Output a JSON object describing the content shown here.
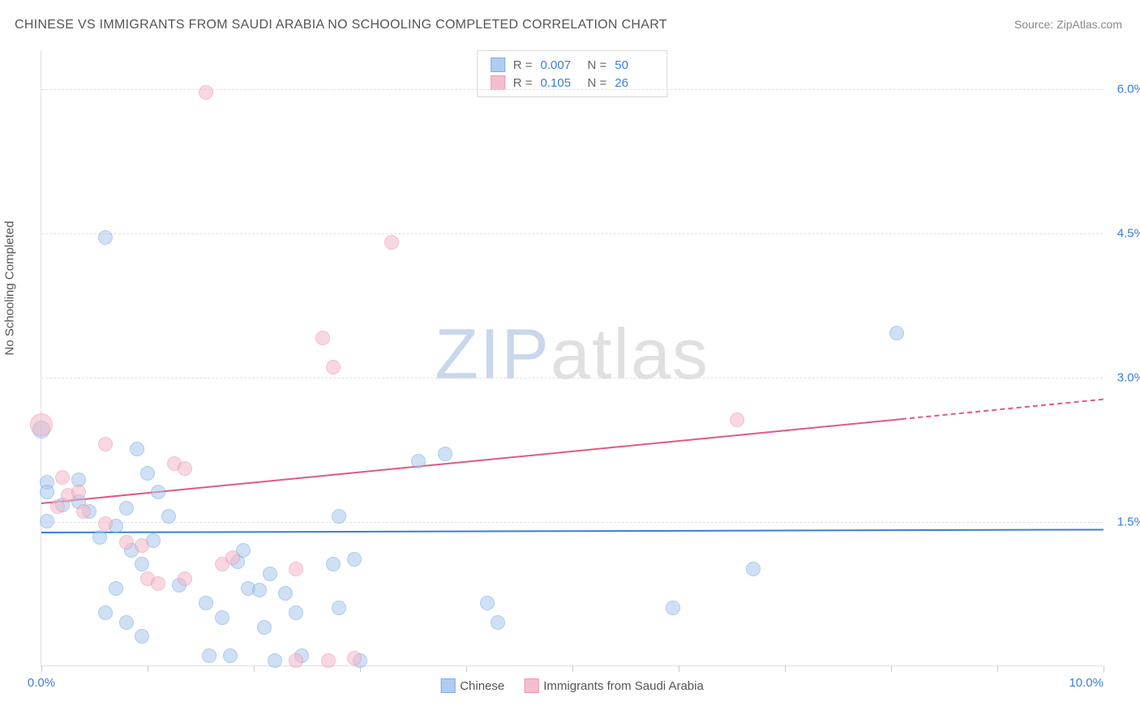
{
  "title": "CHINESE VS IMMIGRANTS FROM SAUDI ARABIA NO SCHOOLING COMPLETED CORRELATION CHART",
  "source": "Source: ZipAtlas.com",
  "ylabel": "No Schooling Completed",
  "watermark_a": "ZIP",
  "watermark_b": "atlas",
  "chart": {
    "type": "scatter",
    "xlim": [
      0,
      10
    ],
    "ylim": [
      0,
      6.4
    ],
    "xticks": [
      0,
      1,
      2,
      3,
      4,
      5,
      6,
      7,
      8,
      9,
      10
    ],
    "xtick_labels_shown": {
      "0": "0.0%",
      "10": "10.0%"
    },
    "yticks": [
      1.5,
      3.0,
      4.5,
      6.0
    ],
    "ytick_labels": [
      "1.5%",
      "3.0%",
      "4.5%",
      "6.0%"
    ],
    "background_color": "#ffffff",
    "grid_color": "#e0e0e0",
    "grid_dash": true,
    "axis_label_color": "#3b7dd8",
    "title_color": "#555555",
    "title_fontsize": 16,
    "ylabel_fontsize": 15,
    "tick_fontsize": 15
  },
  "series": [
    {
      "name": "Chinese",
      "fill_color": "#a8c8ee",
      "fill_opacity": 0.55,
      "stroke_color": "#6fa3e0",
      "line_color": "#3b7dd8",
      "marker_radius": 9,
      "r_label": "R =",
      "r_value": "0.007",
      "n_label": "N =",
      "n_value": "50",
      "regression": {
        "y_at_x0": 1.4,
        "y_at_x10": 1.43
      },
      "points": [
        {
          "x": 0.6,
          "y": 4.45,
          "r": 9
        },
        {
          "x": 8.05,
          "y": 3.45,
          "r": 9
        },
        {
          "x": 0.0,
          "y": 2.45,
          "r": 11
        },
        {
          "x": 0.05,
          "y": 1.9,
          "r": 9
        },
        {
          "x": 0.05,
          "y": 1.8,
          "r": 9
        },
        {
          "x": 0.05,
          "y": 1.5,
          "r": 9
        },
        {
          "x": 0.35,
          "y": 1.7,
          "r": 9
        },
        {
          "x": 0.35,
          "y": 1.93,
          "r": 9
        },
        {
          "x": 0.8,
          "y": 1.63,
          "r": 9
        },
        {
          "x": 0.9,
          "y": 2.25,
          "r": 9
        },
        {
          "x": 1.0,
          "y": 2.0,
          "r": 9
        },
        {
          "x": 1.2,
          "y": 1.55,
          "r": 9
        },
        {
          "x": 1.05,
          "y": 1.3,
          "r": 9
        },
        {
          "x": 0.7,
          "y": 1.45,
          "r": 9
        },
        {
          "x": 0.55,
          "y": 1.33,
          "r": 9
        },
        {
          "x": 0.85,
          "y": 1.2,
          "r": 9
        },
        {
          "x": 0.95,
          "y": 1.05,
          "r": 9
        },
        {
          "x": 0.7,
          "y": 0.8,
          "r": 9
        },
        {
          "x": 0.6,
          "y": 0.55,
          "r": 9
        },
        {
          "x": 0.8,
          "y": 0.45,
          "r": 9
        },
        {
          "x": 0.95,
          "y": 0.3,
          "r": 9
        },
        {
          "x": 1.3,
          "y": 0.83,
          "r": 9
        },
        {
          "x": 1.55,
          "y": 0.65,
          "r": 9
        },
        {
          "x": 1.58,
          "y": 0.1,
          "r": 9
        },
        {
          "x": 1.7,
          "y": 0.5,
          "r": 9
        },
        {
          "x": 1.85,
          "y": 1.08,
          "r": 9
        },
        {
          "x": 1.78,
          "y": 0.1,
          "r": 9
        },
        {
          "x": 1.95,
          "y": 0.8,
          "r": 9
        },
        {
          "x": 1.9,
          "y": 1.2,
          "r": 9
        },
        {
          "x": 2.05,
          "y": 0.78,
          "r": 9
        },
        {
          "x": 2.1,
          "y": 0.4,
          "r": 9
        },
        {
          "x": 2.15,
          "y": 0.95,
          "r": 9
        },
        {
          "x": 2.3,
          "y": 0.75,
          "r": 9
        },
        {
          "x": 2.2,
          "y": 0.05,
          "r": 9
        },
        {
          "x": 2.4,
          "y": 0.55,
          "r": 9
        },
        {
          "x": 2.45,
          "y": 0.1,
          "r": 9
        },
        {
          "x": 2.75,
          "y": 1.05,
          "r": 9
        },
        {
          "x": 2.8,
          "y": 0.6,
          "r": 9
        },
        {
          "x": 2.8,
          "y": 1.55,
          "r": 9
        },
        {
          "x": 2.95,
          "y": 1.1,
          "r": 9
        },
        {
          "x": 3.0,
          "y": 0.05,
          "r": 9
        },
        {
          "x": 3.55,
          "y": 2.12,
          "r": 9
        },
        {
          "x": 3.8,
          "y": 2.2,
          "r": 9
        },
        {
          "x": 4.2,
          "y": 0.65,
          "r": 9
        },
        {
          "x": 4.3,
          "y": 0.45,
          "r": 9
        },
        {
          "x": 5.95,
          "y": 0.6,
          "r": 9
        },
        {
          "x": 6.7,
          "y": 1.0,
          "r": 9
        },
        {
          "x": 0.45,
          "y": 1.6,
          "r": 9
        },
        {
          "x": 1.1,
          "y": 1.8,
          "r": 9
        },
        {
          "x": 0.2,
          "y": 1.67,
          "r": 9
        }
      ]
    },
    {
      "name": "Immigrants from Saudi Arabia",
      "fill_color": "#f4b8c8",
      "fill_opacity": 0.55,
      "stroke_color": "#e88fa8",
      "line_color": "#e05a7f",
      "marker_radius": 9,
      "r_label": "R =",
      "r_value": "0.105",
      "n_label": "N =",
      "n_value": "26",
      "regression": {
        "y_at_x0": 1.7,
        "y_at_x10": 2.78,
        "dash_from_x": 8.1
      },
      "points": [
        {
          "x": 1.55,
          "y": 5.95,
          "r": 9
        },
        {
          "x": 3.3,
          "y": 4.4,
          "r": 9
        },
        {
          "x": 2.65,
          "y": 3.4,
          "r": 9
        },
        {
          "x": 2.75,
          "y": 3.1,
          "r": 9
        },
        {
          "x": 0.0,
          "y": 2.5,
          "r": 14
        },
        {
          "x": 6.55,
          "y": 2.55,
          "r": 9
        },
        {
          "x": 0.6,
          "y": 2.3,
          "r": 9
        },
        {
          "x": 1.25,
          "y": 2.1,
          "r": 9
        },
        {
          "x": 1.35,
          "y": 2.05,
          "r": 9
        },
        {
          "x": 0.2,
          "y": 1.95,
          "r": 9
        },
        {
          "x": 0.25,
          "y": 1.77,
          "r": 9
        },
        {
          "x": 0.35,
          "y": 1.8,
          "r": 9
        },
        {
          "x": 0.15,
          "y": 1.65,
          "r": 9
        },
        {
          "x": 0.4,
          "y": 1.6,
          "r": 9
        },
        {
          "x": 0.8,
          "y": 1.28,
          "r": 9
        },
        {
          "x": 0.95,
          "y": 1.25,
          "r": 9
        },
        {
          "x": 1.0,
          "y": 0.9,
          "r": 9
        },
        {
          "x": 1.1,
          "y": 0.85,
          "r": 9
        },
        {
          "x": 1.35,
          "y": 0.9,
          "r": 9
        },
        {
          "x": 1.7,
          "y": 1.05,
          "r": 9
        },
        {
          "x": 1.8,
          "y": 1.12,
          "r": 9
        },
        {
          "x": 2.4,
          "y": 1.0,
          "r": 9
        },
        {
          "x": 2.4,
          "y": 0.05,
          "r": 9
        },
        {
          "x": 2.7,
          "y": 0.05,
          "r": 9
        },
        {
          "x": 2.95,
          "y": 0.08,
          "r": 9
        },
        {
          "x": 0.6,
          "y": 1.47,
          "r": 9
        }
      ]
    }
  ],
  "legend_bottom": [
    {
      "label": "Chinese"
    },
    {
      "label": "Immigrants from Saudi Arabia"
    }
  ]
}
